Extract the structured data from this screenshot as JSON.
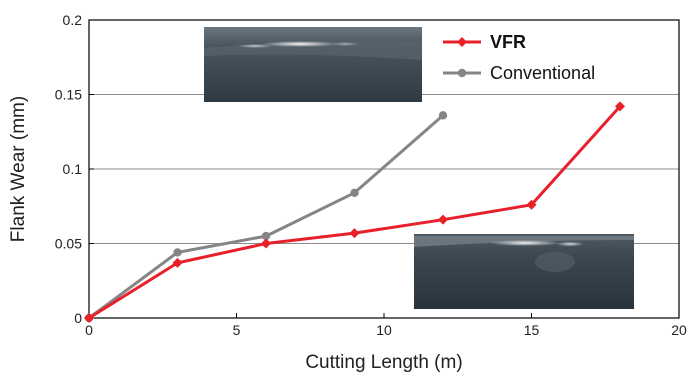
{
  "chart_data": {
    "type": "line",
    "xlabel": "Cutting Length (m)",
    "ylabel": "Flank Wear (mm)",
    "xlim": [
      0,
      20
    ],
    "ylim": [
      0,
      0.2
    ],
    "xticks": [
      "0",
      "5",
      "10",
      "15",
      "20"
    ],
    "yticks": [
      "0",
      "0.05",
      "0.1",
      "0.15",
      "0.2"
    ],
    "xtick_values": [
      0,
      5,
      10,
      15,
      20
    ],
    "ytick_values": [
      0,
      0.05,
      0.1,
      0.15,
      0.2
    ],
    "grid": "horizontal",
    "legend_position": "top-right",
    "series": [
      {
        "name": "VFR",
        "color": "#e8202a",
        "marker": "diamond",
        "x": [
          0,
          3,
          6,
          9,
          12,
          15,
          18
        ],
        "y": [
          0,
          0.037,
          0.05,
          0.057,
          0.066,
          0.076,
          0.142
        ]
      },
      {
        "name": "Conventional",
        "color": "#858585",
        "marker": "circle",
        "x": [
          0,
          3,
          6,
          9,
          12
        ],
        "y": [
          0,
          0.044,
          0.055,
          0.084,
          0.136
        ]
      }
    ]
  }
}
